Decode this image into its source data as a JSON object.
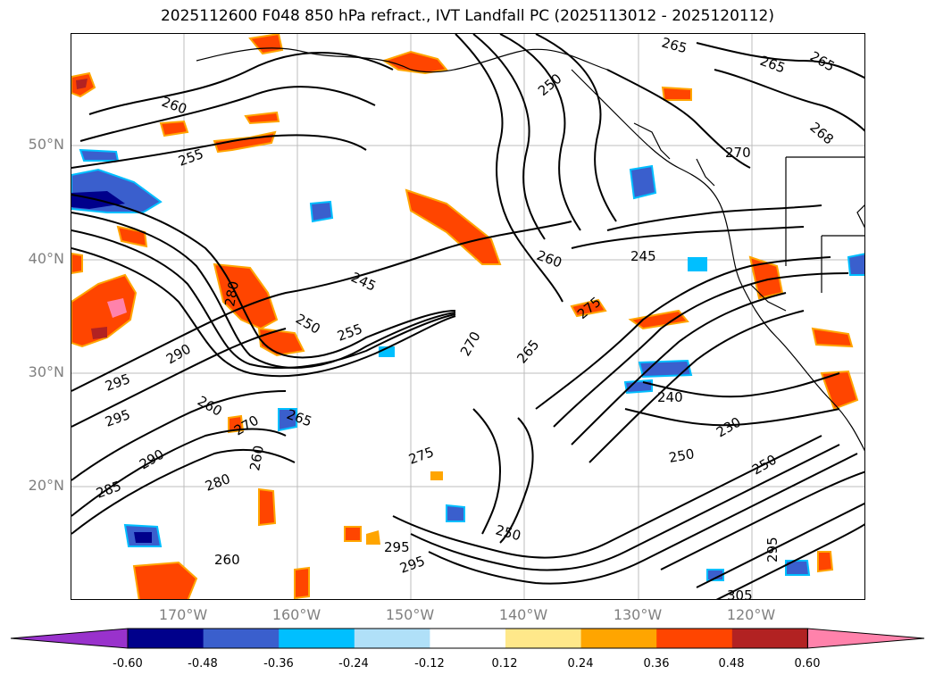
{
  "title": "2025112600 F048 850 hPa refract., IVT Landfall PC (2025113012 - 2025120112)",
  "lat_labels": [
    "50°N",
    "40°N",
    "30°N",
    "20°N"
  ],
  "lon_labels": [
    "170°W",
    "160°W",
    "150°W",
    "140°W",
    "130°W",
    "120°W"
  ],
  "contour_labels": [
    "265",
    "265",
    "265",
    "260",
    "255",
    "250",
    "270",
    "268",
    "245",
    "260",
    "245",
    "250",
    "255",
    "280",
    "270",
    "275",
    "265",
    "295",
    "260",
    "290",
    "295",
    "265",
    "270",
    "280",
    "260",
    "250",
    "240",
    "230",
    "250",
    "275",
    "285",
    "250",
    "290",
    "295",
    "260",
    "295",
    "295",
    "305"
  ],
  "colorbar": {
    "ticks": [
      "-0.60",
      "-0.48",
      "-0.36",
      "-0.24",
      "-0.12",
      "0.12",
      "0.24",
      "0.36",
      "0.48",
      "0.60"
    ],
    "colors": [
      "#9932cc",
      "#00008b",
      "#3a5fcd",
      "#00bfff",
      "#b0e0f8",
      "#ffffff",
      "#ffe88a",
      "#ffa500",
      "#ff4500",
      "#b22222",
      "#ff82ab"
    ]
  },
  "colors": {
    "contour": "#000000",
    "coast": "#000000",
    "grid": "#a0a0a0",
    "axis_label": "#808080"
  }
}
